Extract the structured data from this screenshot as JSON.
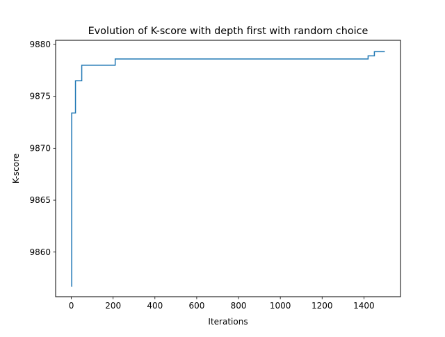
{
  "chart_data": {
    "type": "line",
    "title": "Evolution of K-score with depth first with random choice",
    "xlabel": "Iterations",
    "ylabel": "K-score",
    "xlim": [
      -75,
      1575
    ],
    "ylim": [
      9855.7,
      9880.4
    ],
    "x_ticks": [
      0,
      200,
      400,
      600,
      800,
      1000,
      1200,
      1400
    ],
    "y_ticks": [
      9860,
      9865,
      9870,
      9875,
      9880
    ],
    "grid": false,
    "legend": "none",
    "series": [
      {
        "color": "#1f77b4",
        "drawstyle": "steps-post",
        "x": [
          0,
          2,
          20,
          50,
          210,
          1420,
          1450,
          1500
        ],
        "y": [
          9856.7,
          9873.4,
          9876.5,
          9878.0,
          9878.6,
          9878.9,
          9879.3,
          9879.3
        ]
      }
    ]
  }
}
